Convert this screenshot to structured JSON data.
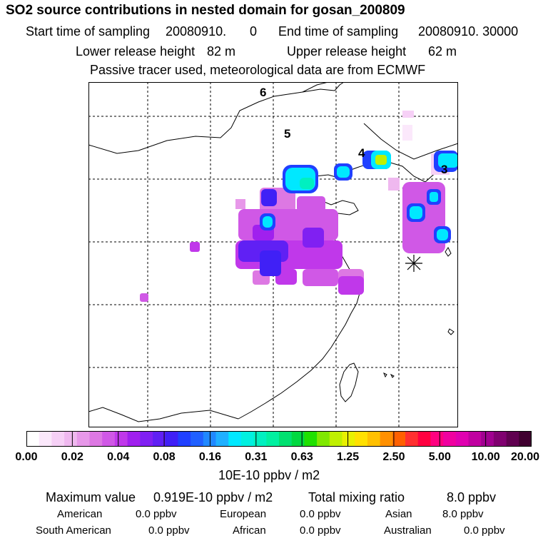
{
  "header": {
    "title": "SO2 source contributions in nested domain for gosan_200809",
    "start_label": "Start time of sampling",
    "start_value": "20080910.",
    "start_hour": "0",
    "end_label": "End time of sampling",
    "end_value": "20080910. 30000",
    "lower_label": "Lower release height",
    "lower_value": "82 m",
    "upper_label": "Upper release height",
    "upper_value": "62 m",
    "tracer_note": "Passive tracer used, meteorological data are from ECMWF"
  },
  "map": {
    "day_labels": [
      "6",
      "5",
      "4",
      "3"
    ],
    "receptor_marker": "receptor-star"
  },
  "colorbar": {
    "tick_labels": [
      "0.00",
      "0.02",
      "0.04",
      "0.08",
      "0.16",
      "0.31",
      "0.63",
      "1.25",
      "2.50",
      "5.00",
      "10.00",
      "20.00"
    ],
    "unit": "10E-10 ppbv / m2",
    "colors": [
      "#ffffff",
      "#fbe8fb",
      "#f6d0f6",
      "#efb8ef",
      "#e798e9",
      "#dd78e3",
      "#d058e6",
      "#c038ea",
      "#a020ee",
      "#8020f2",
      "#6020f4",
      "#4020f6",
      "#2040ff",
      "#2060ff",
      "#2088ff",
      "#20b0ff",
      "#00e8ff",
      "#00f0e0",
      "#00f0c0",
      "#00f0a0",
      "#00e070",
      "#00d840",
      "#20e000",
      "#80e800",
      "#c0f000",
      "#e8f000",
      "#ffe000",
      "#ffc000",
      "#ff9000",
      "#ff6000",
      "#ff3030",
      "#ff0040",
      "#ff0080",
      "#f000a0",
      "#e000b0",
      "#c000a0",
      "#a00090",
      "#800070",
      "#600050",
      "#400030"
    ]
  },
  "footer": {
    "max_label": "Maximum value",
    "max_value": "0.919E-10 ppbv / m2",
    "total_label": "Total mixing ratio",
    "total_value": "8.0 ppbv",
    "regions": [
      {
        "name": "American",
        "value": "0.0 ppbv"
      },
      {
        "name": "European",
        "value": "0.0 ppbv"
      },
      {
        "name": "Asian",
        "value": "8.0 ppbv"
      },
      {
        "name": "South American",
        "value": "0.0 ppbv"
      },
      {
        "name": "African",
        "value": "0.0 ppbv"
      },
      {
        "name": "Australian",
        "value": "0.0 ppbv"
      }
    ]
  }
}
